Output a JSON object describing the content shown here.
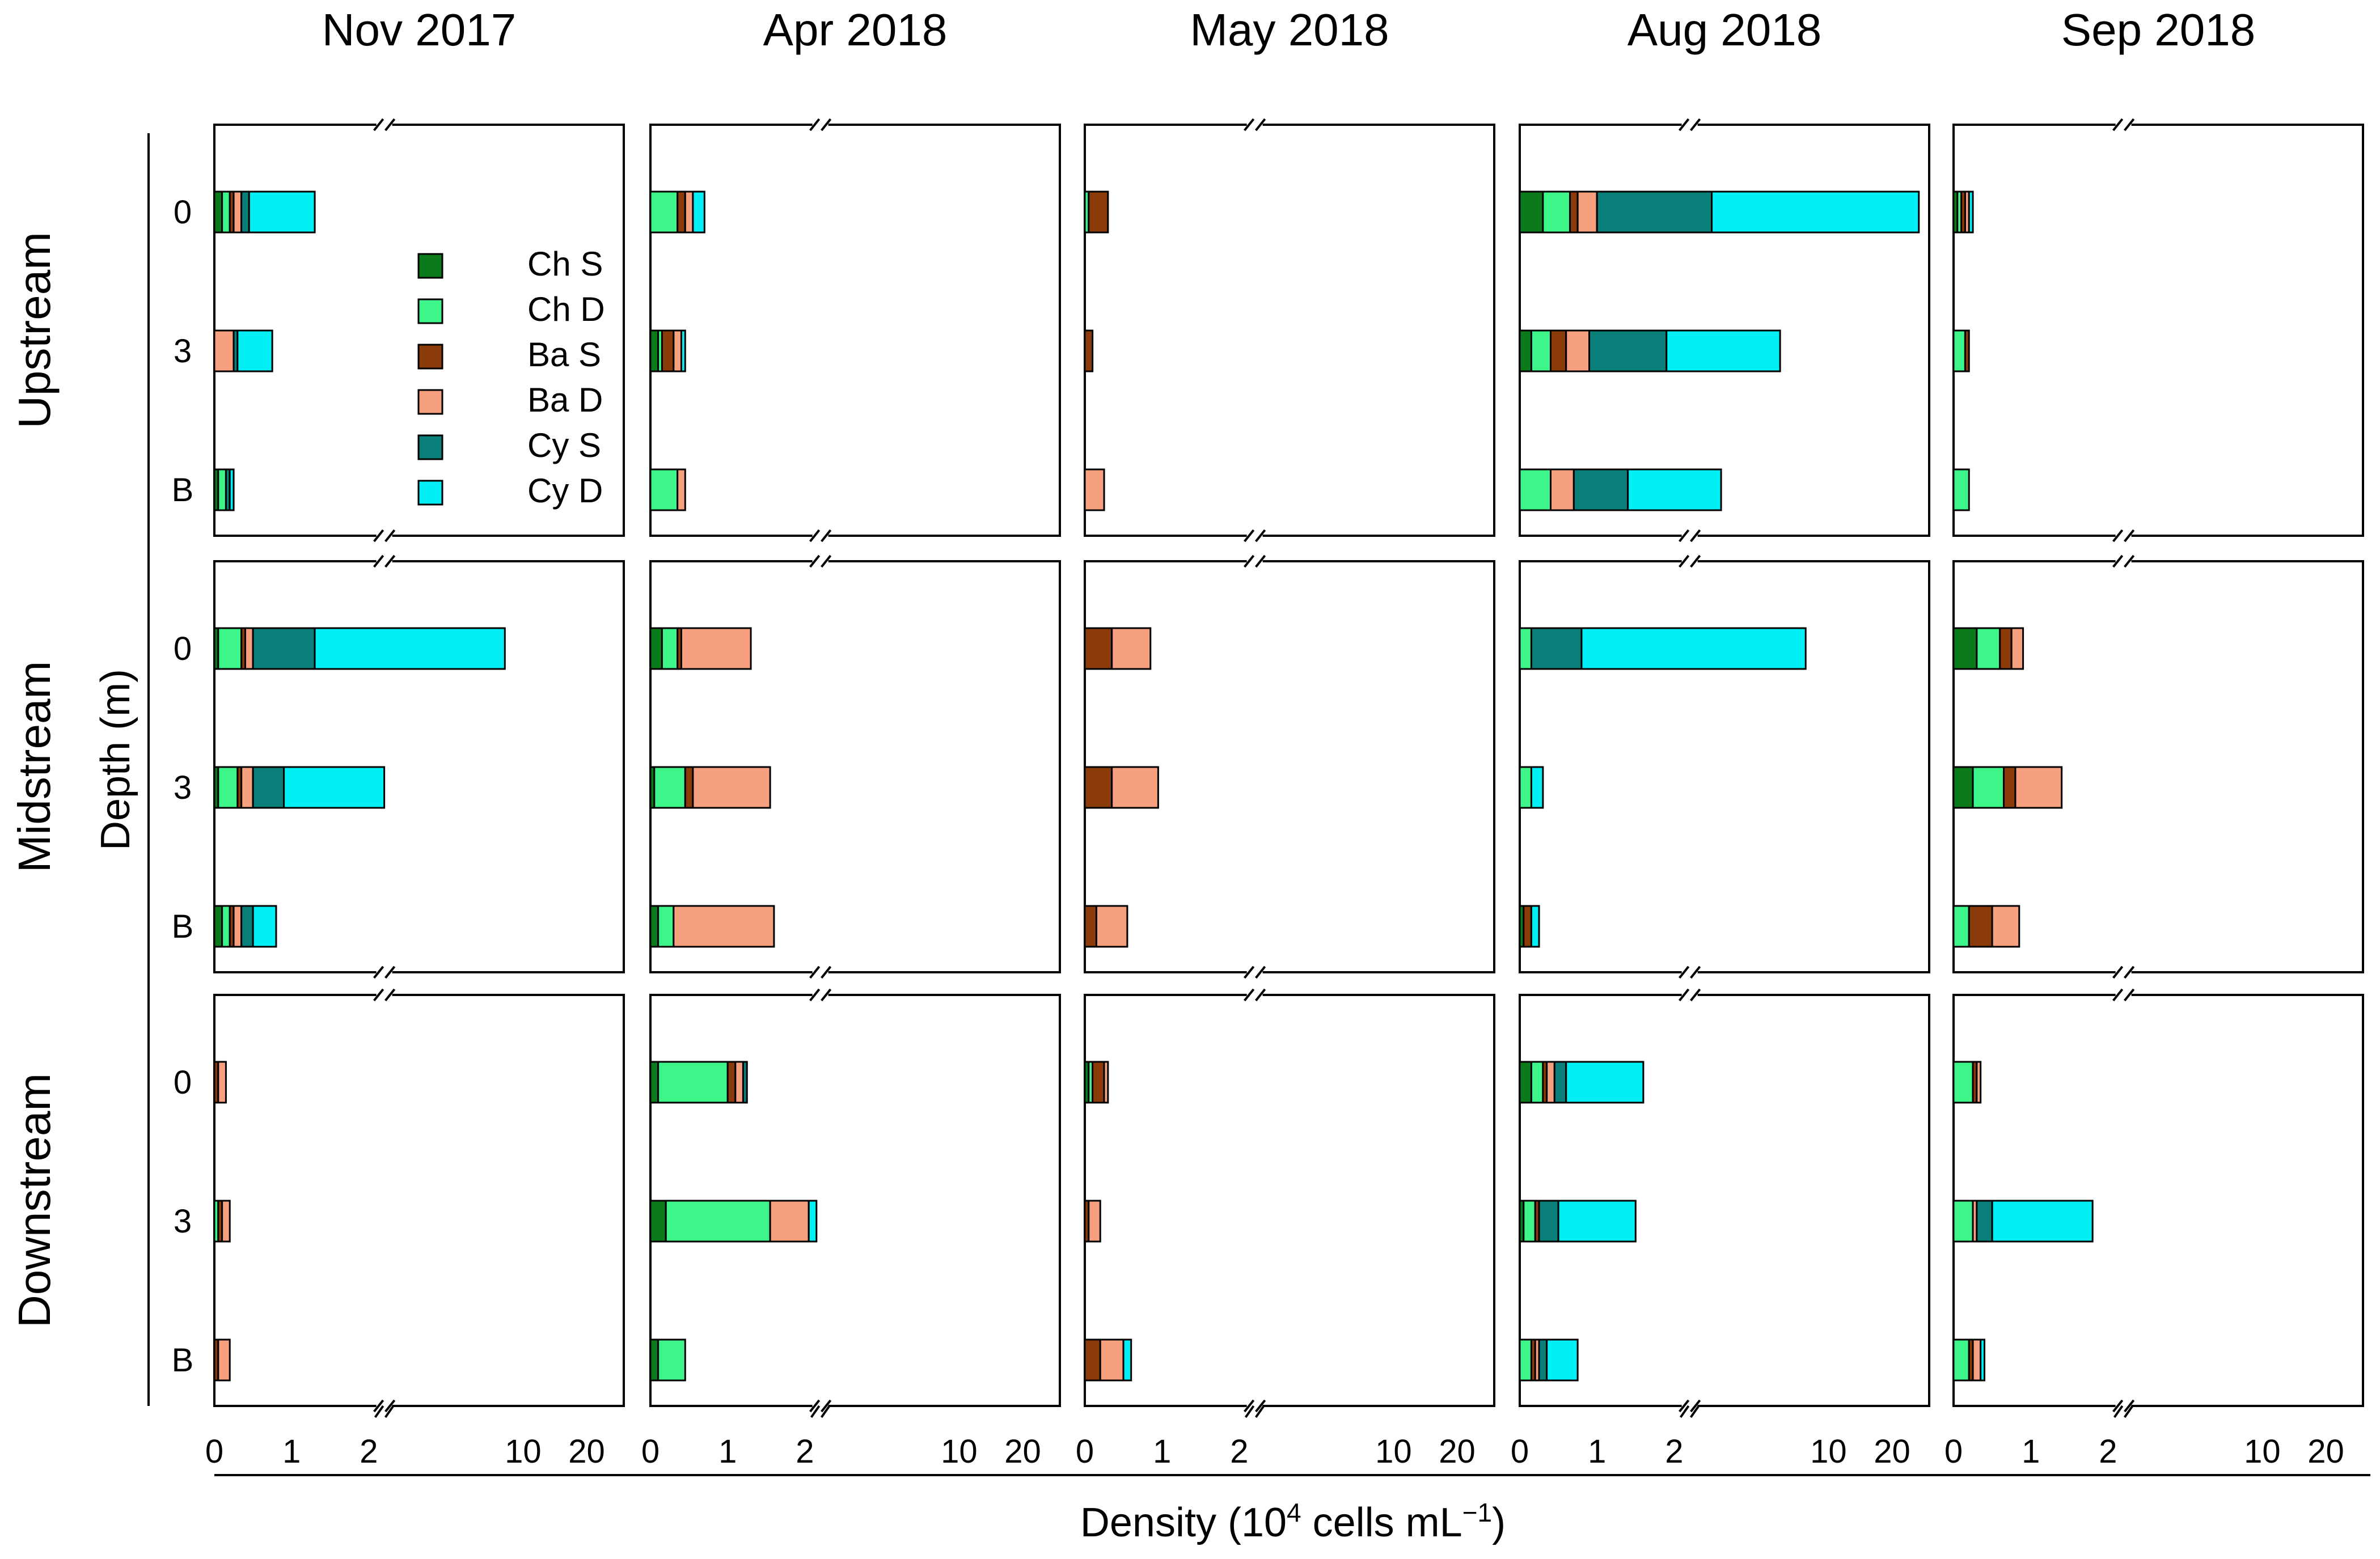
{
  "chart_data": {
    "type": "bar",
    "orientation": "horizontal-stacked",
    "columns": [
      "Nov 2017",
      "Apr 2018",
      "May 2018",
      "Aug 2018",
      "Sep 2018"
    ],
    "rows": [
      "Upstream",
      "Midstream",
      "Downstream"
    ],
    "depth_labels": [
      "0",
      "3",
      "B"
    ],
    "ylabel": "Depth (m)",
    "xlabel": {
      "prefix": "Density (10",
      "sup": "4",
      "mid": " cells mL",
      "sup2": "−1",
      "suffix": ")"
    },
    "xticks": [
      "0",
      "1",
      "2",
      "10",
      "20"
    ],
    "axis_break": {
      "linear_max": 2.2,
      "log_split": 2.2,
      "log_max": 30
    },
    "xlim": [
      0,
      30
    ],
    "legend": [
      "Ch S",
      "Ch D",
      "Ba S",
      "Ba D",
      "Cy S",
      "Cy D"
    ],
    "colors": {
      "Ch S": "#0a7a1a",
      "Ch D": "#3ef58a",
      "Ba S": "#8b3a0a",
      "Ba D": "#f7a080",
      "Cy S": "#0a7e78",
      "Cy D": "#00f0f5"
    },
    "series_order": [
      "Ch S",
      "Ch D",
      "Ba S",
      "Ba D",
      "Cy S",
      "Cy D"
    ],
    "panels": [
      {
        "row": "Upstream",
        "col": "Nov 2017",
        "bars": [
          {
            "depth": "0",
            "values": [
              0.1,
              0.1,
              0.05,
              0.1,
              0.1,
              0.85
            ]
          },
          {
            "depth": "3",
            "values": [
              0.0,
              0.0,
              0.0,
              0.25,
              0.05,
              0.45
            ]
          },
          {
            "depth": "B",
            "values": [
              0.05,
              0.1,
              0.0,
              0.0,
              0.05,
              0.05
            ]
          }
        ]
      },
      {
        "row": "Upstream",
        "col": "Apr 2018",
        "bars": [
          {
            "depth": "0",
            "values": [
              0.0,
              0.35,
              0.1,
              0.1,
              0.0,
              0.15
            ]
          },
          {
            "depth": "3",
            "values": [
              0.1,
              0.05,
              0.15,
              0.1,
              0.0,
              0.05
            ]
          },
          {
            "depth": "B",
            "values": [
              0.0,
              0.35,
              0.0,
              0.1,
              0.0,
              0.0
            ]
          }
        ]
      },
      {
        "row": "Upstream",
        "col": "May 2018",
        "bars": [
          {
            "depth": "0",
            "values": [
              0.0,
              0.05,
              0.25,
              0.0,
              0.0,
              0.0
            ]
          },
          {
            "depth": "3",
            "values": [
              0.0,
              0.0,
              0.1,
              0.0,
              0.0,
              0.0
            ]
          },
          {
            "depth": "B",
            "values": [
              0.0,
              0.0,
              0.0,
              0.25,
              0.0,
              0.0
            ]
          }
        ]
      },
      {
        "row": "Upstream",
        "col": "Aug 2018",
        "bars": [
          {
            "depth": "0",
            "values": [
              0.3,
              0.35,
              0.1,
              0.25,
              1.8,
              24.0
            ]
          },
          {
            "depth": "3",
            "values": [
              0.15,
              0.25,
              0.2,
              0.3,
              1.0,
              4.0
            ]
          },
          {
            "depth": "B",
            "values": [
              0.0,
              0.4,
              0.0,
              0.3,
              0.7,
              1.7
            ]
          }
        ]
      },
      {
        "row": "Upstream",
        "col": "Sep 2018",
        "bars": [
          {
            "depth": "0",
            "values": [
              0.05,
              0.05,
              0.05,
              0.05,
              0.0,
              0.05
            ]
          },
          {
            "depth": "3",
            "values": [
              0.0,
              0.15,
              0.05,
              0.0,
              0.0,
              0.0
            ]
          },
          {
            "depth": "B",
            "values": [
              0.0,
              0.2,
              0.0,
              0.0,
              0.0,
              0.0
            ]
          }
        ]
      },
      {
        "row": "Midstream",
        "col": "Nov 2017",
        "bars": [
          {
            "depth": "0",
            "values": [
              0.05,
              0.3,
              0.05,
              0.1,
              0.8,
              6.9
            ]
          },
          {
            "depth": "3",
            "values": [
              0.05,
              0.25,
              0.05,
              0.15,
              0.4,
              1.3
            ]
          },
          {
            "depth": "B",
            "values": [
              0.1,
              0.1,
              0.05,
              0.1,
              0.15,
              0.3
            ]
          }
        ]
      },
      {
        "row": "Midstream",
        "col": "Apr 2018",
        "bars": [
          {
            "depth": "0",
            "values": [
              0.15,
              0.2,
              0.05,
              0.9,
              0.0,
              0.0
            ]
          },
          {
            "depth": "3",
            "values": [
              0.05,
              0.4,
              0.1,
              1.0,
              0.0,
              0.0
            ]
          },
          {
            "depth": "B",
            "values": [
              0.1,
              0.2,
              0.0,
              1.3,
              0.0,
              0.0
            ]
          }
        ]
      },
      {
        "row": "Midstream",
        "col": "May 2018",
        "bars": [
          {
            "depth": "0",
            "values": [
              0.0,
              0.0,
              0.35,
              0.5,
              0.0,
              0.0
            ]
          },
          {
            "depth": "3",
            "values": [
              0.0,
              0.0,
              0.35,
              0.6,
              0.0,
              0.0
            ]
          },
          {
            "depth": "B",
            "values": [
              0.0,
              0.0,
              0.15,
              0.4,
              0.0,
              0.0
            ]
          }
        ]
      },
      {
        "row": "Midstream",
        "col": "Aug 2018",
        "bars": [
          {
            "depth": "0",
            "values": [
              0.0,
              0.15,
              0.0,
              0.0,
              0.65,
              7.0
            ]
          },
          {
            "depth": "3",
            "values": [
              0.0,
              0.15,
              0.0,
              0.0,
              0.0,
              0.15
            ]
          },
          {
            "depth": "B",
            "values": [
              0.05,
              0.0,
              0.1,
              0.0,
              0.0,
              0.1
            ]
          }
        ]
      },
      {
        "row": "Midstream",
        "col": "Sep 2018",
        "bars": [
          {
            "depth": "0",
            "values": [
              0.3,
              0.3,
              0.15,
              0.15,
              0.0,
              0.0
            ]
          },
          {
            "depth": "3",
            "values": [
              0.25,
              0.4,
              0.15,
              0.6,
              0.0,
              0.0
            ]
          },
          {
            "depth": "B",
            "values": [
              0.0,
              0.2,
              0.3,
              0.35,
              0.0,
              0.0
            ]
          }
        ]
      },
      {
        "row": "Downstream",
        "col": "Nov 2017",
        "bars": [
          {
            "depth": "0",
            "values": [
              0.0,
              0.0,
              0.05,
              0.1,
              0.0,
              0.0
            ]
          },
          {
            "depth": "3",
            "values": [
              0.0,
              0.05,
              0.05,
              0.1,
              0.0,
              0.0
            ]
          },
          {
            "depth": "B",
            "values": [
              0.0,
              0.0,
              0.05,
              0.15,
              0.0,
              0.0
            ]
          }
        ]
      },
      {
        "row": "Downstream",
        "col": "Apr 2018",
        "bars": [
          {
            "depth": "0",
            "values": [
              0.1,
              0.9,
              0.1,
              0.1,
              0.05,
              0.0
            ]
          },
          {
            "depth": "3",
            "values": [
              0.2,
              1.35,
              0.0,
              0.5,
              0.0,
              0.1
            ]
          },
          {
            "depth": "B",
            "values": [
              0.1,
              0.35,
              0.0,
              0.0,
              0.0,
              0.0
            ]
          }
        ]
      },
      {
        "row": "Downstream",
        "col": "May 2018",
        "bars": [
          {
            "depth": "0",
            "values": [
              0.05,
              0.05,
              0.15,
              0.05,
              0.0,
              0.0
            ]
          },
          {
            "depth": "3",
            "values": [
              0.0,
              0.0,
              0.05,
              0.15,
              0.0,
              0.0
            ]
          },
          {
            "depth": "B",
            "values": [
              0.0,
              0.0,
              0.2,
              0.3,
              0.0,
              0.1
            ]
          }
        ]
      },
      {
        "row": "Downstream",
        "col": "Aug 2018",
        "bars": [
          {
            "depth": "0",
            "values": [
              0.15,
              0.15,
              0.05,
              0.1,
              0.15,
              1.0
            ]
          },
          {
            "depth": "3",
            "values": [
              0.05,
              0.15,
              0.05,
              0.0,
              0.25,
              1.0
            ]
          },
          {
            "depth": "B",
            "values": [
              0.0,
              0.15,
              0.05,
              0.05,
              0.1,
              0.4
            ]
          }
        ]
      },
      {
        "row": "Downstream",
        "col": "Sep 2018",
        "bars": [
          {
            "depth": "0",
            "values": [
              0.0,
              0.25,
              0.05,
              0.05,
              0.0,
              0.0
            ]
          },
          {
            "depth": "3",
            "values": [
              0.0,
              0.25,
              0.0,
              0.05,
              0.2,
              1.3
            ]
          },
          {
            "depth": "B",
            "values": [
              0.0,
              0.2,
              0.05,
              0.1,
              0.0,
              0.05
            ]
          }
        ]
      }
    ]
  }
}
